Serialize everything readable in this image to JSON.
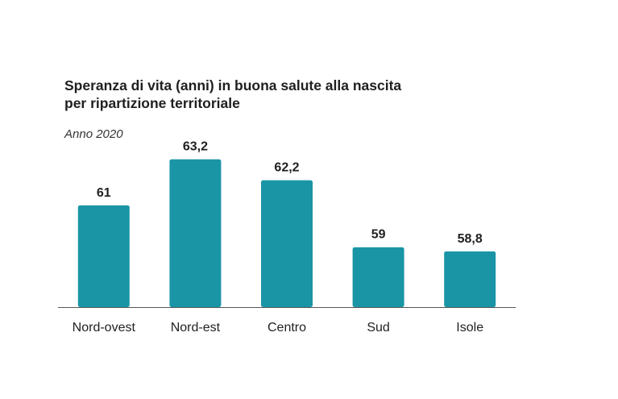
{
  "chart_data": {
    "type": "bar",
    "title_lines": [
      "Speranza di vita (anni) in buona salute alla nascita",
      "per ripartizione territoriale"
    ],
    "subtitle": "Anno 2020",
    "categories": [
      "Nord-ovest",
      "Nord-est",
      "Centro",
      "Sud",
      "Isole"
    ],
    "values": [
      61,
      63.2,
      62.2,
      59,
      58.8
    ],
    "value_labels": [
      "61",
      "63,2",
      "62,2",
      "59",
      "58,8"
    ],
    "xlabel": "",
    "ylabel": "",
    "grid": false,
    "legend": "none",
    "bar_color": "#1a95a6",
    "axis_color": "#555555"
  }
}
